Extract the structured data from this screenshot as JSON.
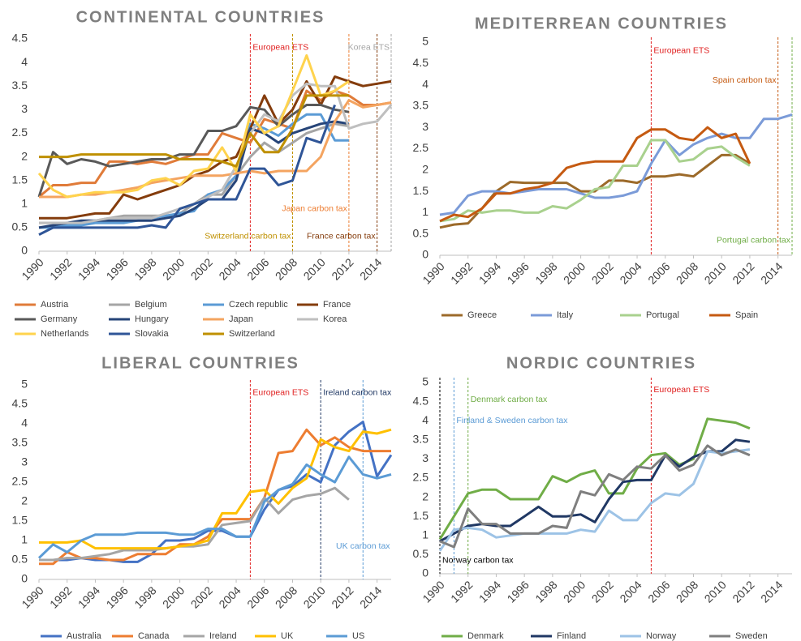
{
  "chart_data": [
    {
      "type": "line",
      "title": "CONTINENTAL COUNTRIES",
      "grid": false,
      "x": [
        1990,
        1991,
        1992,
        1993,
        1994,
        1995,
        1996,
        1997,
        1998,
        1999,
        2000,
        2001,
        2002,
        2003,
        2004,
        2005,
        2006,
        2007,
        2008,
        2009,
        2010,
        2011,
        2012,
        2013,
        2014,
        2015
      ],
      "xlim": [
        1990,
        2015
      ],
      "xticks": [
        1990,
        1992,
        1994,
        1996,
        1998,
        2000,
        2002,
        2004,
        2006,
        2008,
        2010,
        2012,
        2014
      ],
      "ylim": [
        0,
        4.5
      ],
      "yticks": [
        0,
        0.5,
        1,
        1.5,
        2,
        2.5,
        3,
        3.5,
        4,
        4.5
      ],
      "series": [
        {
          "name": "Austria",
          "color": "#e07b39",
          "values": [
            1.15,
            1.4,
            1.4,
            1.45,
            1.45,
            1.9,
            1.9,
            1.85,
            1.9,
            1.85,
            1.95,
            2.05,
            2.05,
            2.5,
            2.4,
            2.3,
            2.8,
            2.7,
            2.6,
            3.4,
            3.2,
            3.4,
            3.3,
            3.1,
            3.1,
            3.15
          ]
        },
        {
          "name": "Belgium",
          "color": "#a5a5a5",
          "values": [
            0.6,
            0.6,
            0.6,
            0.6,
            0.65,
            0.7,
            0.75,
            0.75,
            0.75,
            0.75,
            0.8,
            1.0,
            1.2,
            1.2,
            1.6,
            2.0,
            2.3,
            2.1,
            2.3,
            2.5,
            2.6,
            2.7,
            2.65,
            null,
            null,
            null
          ]
        },
        {
          "name": "Czech republic",
          "color": "#5b9bd5",
          "values": [
            0.5,
            0.5,
            0.55,
            0.55,
            0.6,
            0.6,
            0.6,
            0.65,
            0.7,
            0.75,
            0.8,
            0.85,
            1.2,
            1.3,
            1.6,
            2.7,
            2.6,
            2.45,
            2.7,
            2.9,
            2.9,
            2.35,
            2.35,
            null,
            null,
            null
          ]
        },
        {
          "name": "France",
          "color": "#843c0c",
          "values": [
            0.7,
            0.7,
            0.7,
            0.75,
            0.8,
            0.8,
            1.2,
            1.1,
            1.2,
            1.3,
            1.4,
            1.6,
            1.7,
            1.9,
            2.0,
            2.6,
            3.3,
            2.7,
            3.0,
            3.6,
            3.1,
            3.7,
            3.6,
            3.5,
            3.55,
            3.6
          ]
        },
        {
          "name": "Germany",
          "color": "#595959",
          "values": [
            1.15,
            2.1,
            1.85,
            1.95,
            1.9,
            1.8,
            1.85,
            1.9,
            1.95,
            1.95,
            2.05,
            2.05,
            2.55,
            2.55,
            2.65,
            3.05,
            3.0,
            2.65,
            2.9,
            3.1,
            3.1,
            3.0,
            2.95,
            null,
            null,
            null
          ]
        },
        {
          "name": "Hungary",
          "color": "#264478",
          "values": [
            0.5,
            0.55,
            0.6,
            0.65,
            0.65,
            0.65,
            0.65,
            0.65,
            0.65,
            0.7,
            0.75,
            0.9,
            1.1,
            1.1,
            1.5,
            2.6,
            2.5,
            2.3,
            2.5,
            2.6,
            2.7,
            2.75,
            2.7,
            null,
            null,
            null
          ]
        },
        {
          "name": "Japan",
          "color": "#f4a460",
          "values": [
            1.15,
            1.15,
            1.15,
            1.2,
            1.2,
            1.25,
            1.3,
            1.35,
            1.45,
            1.5,
            1.55,
            1.6,
            1.6,
            1.6,
            1.65,
            1.7,
            1.65,
            1.7,
            1.7,
            1.7,
            2.0,
            2.75,
            3.2,
            3.05,
            3.1,
            3.15
          ]
        },
        {
          "name": "Korea",
          "color": "#bfbfbf",
          "values": [
            0.6,
            0.6,
            0.6,
            0.6,
            0.65,
            0.7,
            0.7,
            0.7,
            0.7,
            0.8,
            0.9,
            1.0,
            1.15,
            1.3,
            1.8,
            2.5,
            2.9,
            2.75,
            3.3,
            3.55,
            3.5,
            3.5,
            2.6,
            2.7,
            2.75,
            3.1
          ]
        },
        {
          "name": "Netherlands",
          "color": "#ffd34d",
          "values": [
            1.65,
            1.3,
            1.15,
            1.2,
            1.25,
            1.25,
            1.25,
            1.3,
            1.5,
            1.55,
            1.4,
            1.7,
            1.75,
            2.2,
            1.7,
            2.9,
            2.5,
            2.65,
            3.4,
            4.15,
            3.3,
            3.4,
            3.6,
            null,
            null,
            null
          ]
        },
        {
          "name": "Slovakia",
          "color": "#2f5597",
          "values": [
            0.35,
            0.5,
            0.5,
            0.5,
            0.5,
            0.5,
            0.5,
            0.5,
            0.55,
            0.5,
            0.9,
            1.0,
            1.1,
            1.1,
            1.1,
            1.75,
            1.75,
            1.4,
            1.5,
            2.4,
            2.3,
            3.1,
            null,
            null,
            null,
            null
          ]
        },
        {
          "name": "Switzerland",
          "color": "#bf9000",
          "values": [
            2.0,
            2.0,
            2.0,
            2.05,
            2.05,
            2.05,
            2.05,
            2.05,
            2.05,
            2.05,
            1.95,
            1.95,
            1.95,
            1.9,
            1.8,
            2.5,
            2.1,
            2.1,
            2.6,
            3.3,
            3.3,
            3.3,
            3.3,
            null,
            null,
            null
          ]
        }
      ],
      "annotations": [
        {
          "text": "European ETS",
          "x": 2005,
          "color": "#e02020"
        },
        {
          "text": "Switzerland carbon tax",
          "x": 2008,
          "color": "#bf9000"
        },
        {
          "text": "Japan carbon tax",
          "x": 2012,
          "color": "#ed7d31"
        },
        {
          "text": "France carbon tax",
          "x": 2014,
          "color": "#843c0c"
        },
        {
          "text": "Korea ETS",
          "x": 2015,
          "color": "#a5a5a5"
        }
      ]
    },
    {
      "type": "line",
      "title": "MEDITERREAN COUNTRIES",
      "grid": false,
      "x": [
        1990,
        1991,
        1992,
        1993,
        1994,
        1995,
        1996,
        1997,
        1998,
        1999,
        2000,
        2001,
        2002,
        2003,
        2004,
        2005,
        2006,
        2007,
        2008,
        2009,
        2010,
        2011,
        2012,
        2013,
        2014,
        2015
      ],
      "xlim": [
        1990,
        2015
      ],
      "xticks": [
        1990,
        1992,
        1994,
        1996,
        1998,
        2000,
        2002,
        2004,
        2006,
        2008,
        2010,
        2012,
        2014
      ],
      "ylim": [
        0,
        5
      ],
      "yticks": [
        0,
        0.5,
        1,
        1.5,
        2,
        2.5,
        3,
        3.5,
        4,
        4.5,
        5
      ],
      "series": [
        {
          "name": "Greece",
          "color": "#9c6a2a",
          "values": [
            0.65,
            0.72,
            0.75,
            1.1,
            1.5,
            1.72,
            1.7,
            1.7,
            1.7,
            1.7,
            1.5,
            1.5,
            1.75,
            1.75,
            1.7,
            1.85,
            1.85,
            1.9,
            1.85,
            2.1,
            2.35,
            2.35,
            2.15,
            null,
            null,
            null
          ]
        },
        {
          "name": "Italy",
          "color": "#7b9bd8",
          "values": [
            0.95,
            1.0,
            1.4,
            1.5,
            1.5,
            1.45,
            1.5,
            1.55,
            1.55,
            1.55,
            1.45,
            1.35,
            1.35,
            1.4,
            1.5,
            2.15,
            2.7,
            2.35,
            2.6,
            2.75,
            2.85,
            2.75,
            2.75,
            3.2,
            3.2,
            3.3
          ]
        },
        {
          "name": "Portugal",
          "color": "#a9d18e",
          "values": [
            0.8,
            0.85,
            1.05,
            1.0,
            1.05,
            1.05,
            1.0,
            1.0,
            1.15,
            1.1,
            1.3,
            1.55,
            1.6,
            2.1,
            2.1,
            2.7,
            2.7,
            2.2,
            2.25,
            2.5,
            2.55,
            2.3,
            2.1,
            null,
            null,
            null
          ]
        },
        {
          "name": "Spain",
          "color": "#c55a11",
          "values": [
            0.8,
            0.95,
            0.9,
            1.1,
            1.45,
            1.45,
            1.55,
            1.6,
            1.7,
            2.05,
            2.15,
            2.2,
            2.2,
            2.2,
            2.75,
            2.95,
            2.95,
            2.75,
            2.7,
            3.0,
            2.75,
            2.85,
            2.15,
            null,
            null,
            null
          ]
        }
      ],
      "annotations": [
        {
          "text": "European ETS",
          "x": 2005,
          "color": "#e02020"
        },
        {
          "text": "Spain carbon tax",
          "x": 2014,
          "color": "#c55a11"
        },
        {
          "text": "Portugal carbon tax",
          "x": 2015,
          "color": "#70ad47"
        }
      ]
    },
    {
      "type": "line",
      "title": "LIBERAL COUNTRIES",
      "grid": false,
      "x": [
        1990,
        1991,
        1992,
        1993,
        1994,
        1995,
        1996,
        1997,
        1998,
        1999,
        2000,
        2001,
        2002,
        2003,
        2004,
        2005,
        2006,
        2007,
        2008,
        2009,
        2010,
        2011,
        2012,
        2013,
        2014,
        2015
      ],
      "xlim": [
        1990,
        2015
      ],
      "xticks": [
        1990,
        1992,
        1994,
        1996,
        1998,
        2000,
        2002,
        2004,
        2006,
        2008,
        2010,
        2012,
        2014
      ],
      "ylim": [
        0,
        5
      ],
      "yticks": [
        0,
        0.5,
        1,
        1.5,
        2,
        2.5,
        3,
        3.5,
        4,
        4.5,
        5
      ],
      "series": [
        {
          "name": "Australia",
          "color": "#4472c4",
          "values": [
            0.5,
            0.5,
            0.5,
            0.55,
            0.5,
            0.5,
            0.45,
            0.45,
            0.65,
            1.0,
            1.0,
            1.05,
            1.25,
            1.25,
            1.1,
            1.1,
            1.8,
            2.3,
            2.4,
            2.7,
            2.5,
            3.45,
            3.8,
            4.05,
            2.65,
            3.2
          ]
        },
        {
          "name": "Canada",
          "color": "#ed7d31",
          "values": [
            0.4,
            0.4,
            0.7,
            0.55,
            0.55,
            0.5,
            0.5,
            0.65,
            0.65,
            0.65,
            0.9,
            0.9,
            1.1,
            1.55,
            1.55,
            1.55,
            2.1,
            3.25,
            3.3,
            3.85,
            3.45,
            3.65,
            3.4,
            3.3,
            3.3,
            3.3
          ]
        },
        {
          "name": "Ireland",
          "color": "#a5a5a5",
          "values": [
            0.5,
            0.5,
            0.55,
            0.55,
            0.6,
            0.65,
            0.75,
            0.75,
            0.75,
            0.8,
            0.85,
            0.85,
            0.9,
            1.4,
            1.45,
            1.5,
            2.1,
            1.7,
            2.05,
            2.15,
            2.2,
            2.35,
            2.05,
            null,
            null,
            null
          ]
        },
        {
          "name": "UK",
          "color": "#ffc000",
          "values": [
            0.95,
            0.95,
            0.95,
            1.0,
            0.8,
            0.8,
            0.8,
            0.8,
            0.8,
            0.8,
            0.85,
            0.9,
            1.0,
            1.7,
            1.7,
            2.25,
            2.3,
            1.95,
            2.35,
            2.6,
            3.6,
            3.4,
            3.3,
            3.8,
            3.75,
            3.85
          ]
        },
        {
          "name": "US",
          "color": "#5b9bd5",
          "values": [
            0.55,
            0.9,
            0.7,
            1.0,
            1.15,
            1.15,
            1.15,
            1.2,
            1.2,
            1.2,
            1.15,
            1.15,
            1.3,
            1.3,
            1.1,
            1.1,
            2.0,
            2.3,
            2.45,
            2.95,
            2.7,
            2.5,
            3.15,
            2.7,
            2.6,
            2.7
          ]
        }
      ],
      "annotations": [
        {
          "text": "European ETS",
          "x": 2005,
          "color": "#e02020"
        },
        {
          "text": "Ireland carbon tax",
          "x": 2010,
          "color": "#203864"
        },
        {
          "text": "UK carbon tax",
          "x": 2013,
          "color": "#5b9bd5"
        }
      ]
    },
    {
      "type": "line",
      "title": "NORDIC COUNTRIES",
      "grid": false,
      "x": [
        1990,
        1991,
        1992,
        1993,
        1994,
        1995,
        1996,
        1997,
        1998,
        1999,
        2000,
        2001,
        2002,
        2003,
        2004,
        2005,
        2006,
        2007,
        2008,
        2009,
        2010,
        2011,
        2012,
        2013,
        2014,
        2015
      ],
      "xlim": [
        1990,
        2015
      ],
      "xticks": [
        1990,
        1992,
        1994,
        1996,
        1998,
        2000,
        2002,
        2004,
        2006,
        2008,
        2010,
        2012,
        2014
      ],
      "ylim": [
        0,
        5
      ],
      "yticks": [
        0,
        0.5,
        1,
        1.5,
        2,
        2.5,
        3,
        3.5,
        4,
        4.5,
        5
      ],
      "series": [
        {
          "name": "Denmark",
          "color": "#70ad47",
          "values": [
            0.9,
            1.5,
            2.1,
            2.2,
            2.2,
            1.95,
            1.95,
            1.95,
            2.55,
            2.4,
            2.6,
            2.7,
            2.1,
            2.1,
            2.75,
            3.1,
            3.15,
            2.85,
            3.0,
            4.05,
            4.0,
            3.95,
            3.8,
            null,
            null,
            null
          ]
        },
        {
          "name": "Finland",
          "color": "#203864",
          "values": [
            0.85,
            1.05,
            1.25,
            1.3,
            1.25,
            1.25,
            1.5,
            1.75,
            1.5,
            1.5,
            1.55,
            1.35,
            1.95,
            2.4,
            2.45,
            2.45,
            3.1,
            2.8,
            3.05,
            3.2,
            3.2,
            3.5,
            3.45,
            null,
            null,
            null
          ]
        },
        {
          "name": "Norway",
          "color": "#9dc3e6",
          "values": [
            0.6,
            1.15,
            1.2,
            1.15,
            0.95,
            1.0,
            1.05,
            1.05,
            1.05,
            1.05,
            1.15,
            1.1,
            1.65,
            1.4,
            1.4,
            1.85,
            2.1,
            2.05,
            2.35,
            3.2,
            3.15,
            3.2,
            3.25,
            null,
            null,
            null
          ]
        },
        {
          "name": "Sweden",
          "color": "#7f7f7f",
          "values": [
            0.85,
            0.7,
            1.7,
            1.3,
            1.3,
            1.05,
            1.05,
            1.05,
            1.25,
            1.2,
            2.15,
            2.05,
            2.6,
            2.45,
            2.8,
            2.75,
            3.1,
            2.7,
            2.85,
            3.35,
            3.1,
            3.25,
            3.1,
            null,
            null,
            null
          ]
        }
      ],
      "annotations": [
        {
          "text": "Norway carbon tax",
          "x": 1990,
          "color": "#000000"
        },
        {
          "text": "Finland & Sweden carbon tax",
          "x": 1991,
          "color": "#5b9bd5"
        },
        {
          "text": "Denmark carbon tax",
          "x": 1992,
          "color": "#70ad47"
        },
        {
          "text": "European ETS",
          "x": 2005,
          "color": "#e02020"
        }
      ]
    }
  ]
}
